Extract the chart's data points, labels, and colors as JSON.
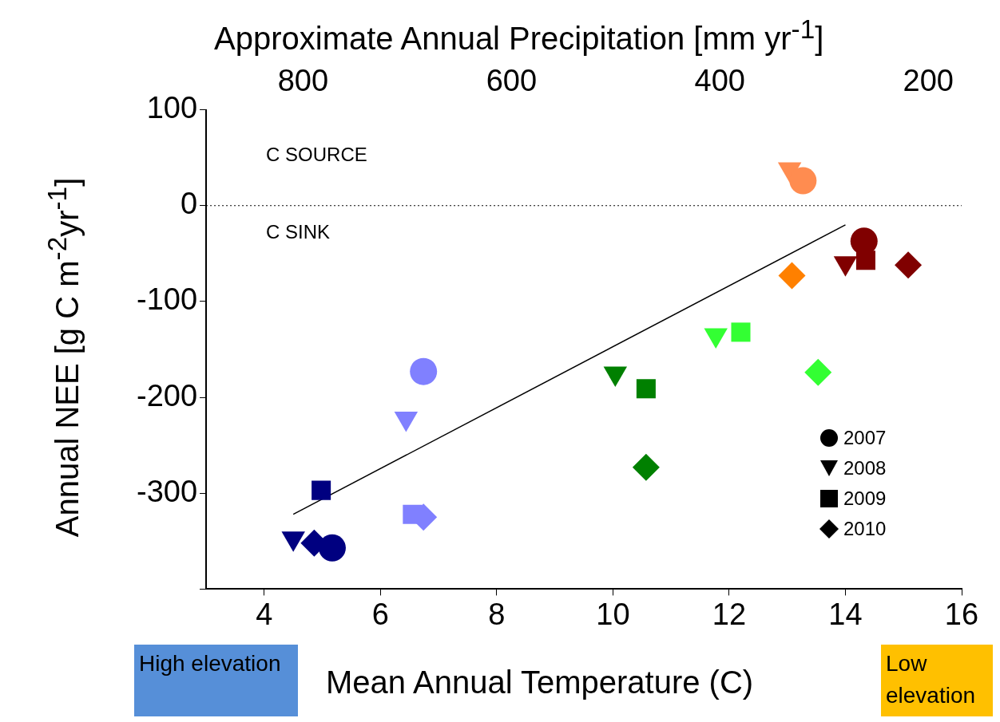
{
  "chart_data": {
    "type": "scatter",
    "xlabel": "Mean Annual Temperature (C)",
    "x2label": "Approximate Annual Precipitation [mm yr$^{-1}$]",
    "ylabel": "Annual NEE [g C m$^{-2}$yr$^{-1}$]",
    "xlim": [
      3,
      16
    ],
    "xticks": [
      4,
      6,
      8,
      10,
      12,
      14,
      16
    ],
    "x2lim": [
      893,
      168
    ],
    "x2ticks": [
      800,
      600,
      400,
      200
    ],
    "ylim": [
      -400,
      100
    ],
    "yticks": [
      {
        "value": -400,
        "label": null
      },
      -300,
      -200,
      -100,
      0,
      100
    ],
    "grid": false,
    "ref_lines": [
      {
        "axis": "y",
        "value": 0,
        "color": "#000000",
        "line_style": "dotted"
      }
    ],
    "annotations": [
      "C SOURCE",
      "C SINK",
      "High elevation",
      "Low elevation",
      "2007",
      "2008",
      "2009",
      "2010"
    ],
    "series": [
      {
        "marker": "circle",
        "color": "#000080",
        "x": [
          5.17,
          6.74,
          13.27,
          14.32
        ],
        "values": [
          -357,
          -173,
          26,
          -37
        ],
        "colors": [
          "#000080",
          "#8080ff",
          "#ff8c50",
          "#800000"
        ]
      },
      {
        "marker": "triangle",
        "color": "#000080",
        "x": [
          4.5,
          6.44,
          10.04,
          11.77,
          13.04,
          14.0
        ],
        "values": [
          -347,
          -222,
          -175,
          -135,
          38,
          -60
        ],
        "colors": [
          "#000080",
          "#8080ff",
          "#008000",
          "#33ff33",
          "#ff8c50",
          "#800000"
        ]
      },
      {
        "marker": "square",
        "color": "#000080",
        "x": [
          4.98,
          6.55,
          10.57,
          12.2,
          14.35
        ],
        "values": [
          -297,
          -322,
          -191,
          -132,
          -57
        ],
        "colors": [
          "#000080",
          "#8080ff",
          "#008000",
          "#33ff33",
          "#800000"
        ]
      },
      {
        "marker": "diamond",
        "color": "#000080",
        "x": [
          4.86,
          6.74,
          10.57,
          13.53,
          13.08,
          15.08
        ],
        "values": [
          -352,
          -325,
          -273,
          -174,
          -73,
          -62
        ],
        "colors": [
          "#000080",
          "#8080ff",
          "#008000",
          "#33ff33",
          "#ff8000",
          "#800000"
        ]
      },
      {
        "type": "line",
        "color": "#000000",
        "marker": "none",
        "x": [
          4.5,
          14.0
        ],
        "values": [
          -322,
          -20
        ]
      }
    ]
  }
}
